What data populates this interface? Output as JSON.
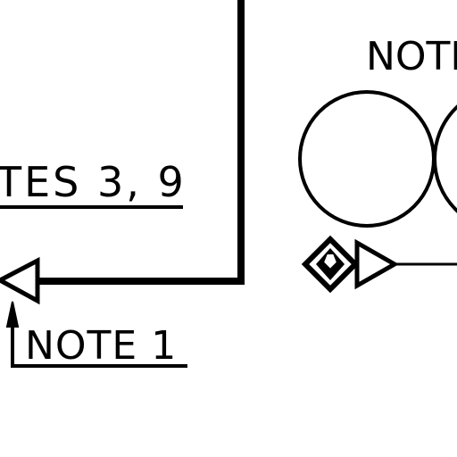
{
  "diagram": {
    "labels": {
      "notes_top": "NOTE",
      "notes_3_9": "TES 3, 9",
      "note_1": "NOTE 1"
    },
    "colors": {
      "line": "#000000",
      "background": "#ffffff"
    },
    "symbols": {
      "left_arrow": "open-triangle-left-icon",
      "diamond": "diamond-valve-icon",
      "right_arrow": "open-triangle-right-icon",
      "leader_arrow": "arrowhead-up-icon"
    }
  }
}
